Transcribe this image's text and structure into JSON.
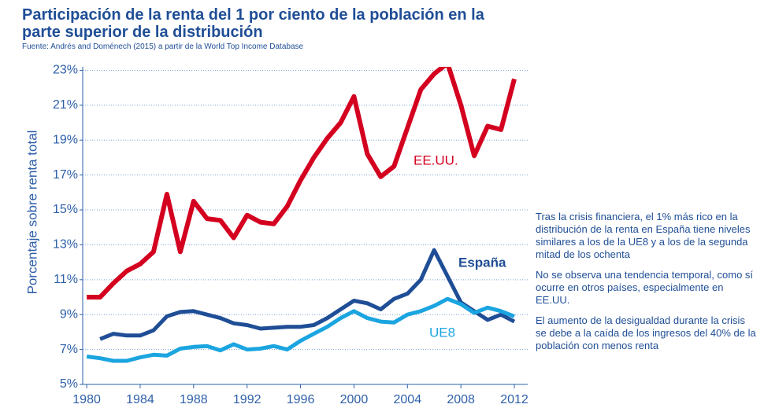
{
  "chart_data": {
    "type": "line",
    "title": "Participación de la renta del 1 por ciento de la población en la parte superior de la distribución",
    "subtitle": "Fuente: Andrés and Doménech (2015) a partir de la World Top Income Database",
    "y_label": "Porcentaje sobre renta total",
    "x": [
      1980,
      1981,
      1982,
      1983,
      1984,
      1985,
      1986,
      1987,
      1988,
      1989,
      1990,
      1991,
      1992,
      1993,
      1994,
      1995,
      1996,
      1997,
      1998,
      1999,
      2000,
      2001,
      2002,
      2003,
      2004,
      2005,
      2006,
      2007,
      2008,
      2009,
      2010,
      2011,
      2012
    ],
    "series": [
      {
        "name": "EE.UU.",
        "color": "#d4001f",
        "values": [
          10.0,
          10.0,
          10.8,
          11.5,
          11.9,
          12.6,
          15.9,
          12.6,
          15.5,
          14.5,
          14.4,
          13.4,
          14.7,
          14.3,
          14.2,
          15.2,
          16.7,
          18.0,
          19.1,
          20.0,
          21.5,
          18.2,
          16.9,
          17.5,
          19.7,
          21.9,
          22.8,
          23.4,
          21.0,
          18.1,
          19.8,
          19.6,
          22.5
        ]
      },
      {
        "name": "España",
        "color": "#1f4e96",
        "values": [
          null,
          7.6,
          7.9,
          7.8,
          7.8,
          8.1,
          8.9,
          9.15,
          9.2,
          9.0,
          8.8,
          8.5,
          8.4,
          8.2,
          8.25,
          8.3,
          8.3,
          8.4,
          8.8,
          9.3,
          9.8,
          9.65,
          9.3,
          9.9,
          10.2,
          11.0,
          12.7,
          11.2,
          9.7,
          9.2,
          8.7,
          9.0,
          8.6
        ]
      },
      {
        "name": "UE8",
        "color": "#1aa5e0",
        "values": [
          6.6,
          6.5,
          6.35,
          6.35,
          6.55,
          6.7,
          6.65,
          7.05,
          7.15,
          7.2,
          6.95,
          7.3,
          7.0,
          7.05,
          7.2,
          7.0,
          7.5,
          7.9,
          8.3,
          8.8,
          9.2,
          8.8,
          8.6,
          8.55,
          9.0,
          9.2,
          9.5,
          9.9,
          9.6,
          9.1,
          9.4,
          9.2,
          8.9
        ]
      }
    ],
    "xlim": [
      1979.7,
      2013
    ],
    "xticks": [
      1980,
      1984,
      1988,
      1992,
      1996,
      2000,
      2004,
      2008,
      2012
    ],
    "ylim": [
      5,
      23.2
    ],
    "yticks": [
      {
        "value": 5,
        "label": "5%"
      },
      {
        "value": 7,
        "label": "7%"
      },
      {
        "value": 9,
        "label": "9%"
      },
      {
        "value": 11,
        "label": "11%"
      },
      {
        "value": 13,
        "label": "13%"
      },
      {
        "value": 15,
        "label": "15%"
      },
      {
        "value": 17,
        "label": "17%"
      },
      {
        "value": 19,
        "label": "19%"
      },
      {
        "value": 21,
        "label": "21%"
      },
      {
        "value": 23,
        "label": "23%"
      }
    ],
    "grid": true,
    "notes": [
      "Tras la crisis financiera, el 1% más rico en la distribución de la renta en España tiene niveles similares a los de la UE8 y a los de la segunda mitad de los ochenta",
      "No se observa una tendencia temporal, como sí ocurre en otros países, especialmente en EE.UU.",
      "El aumento de la desigualdad durante la crisis se debe a la caída de los ingresos del 40% de la población con menos renta"
    ]
  }
}
